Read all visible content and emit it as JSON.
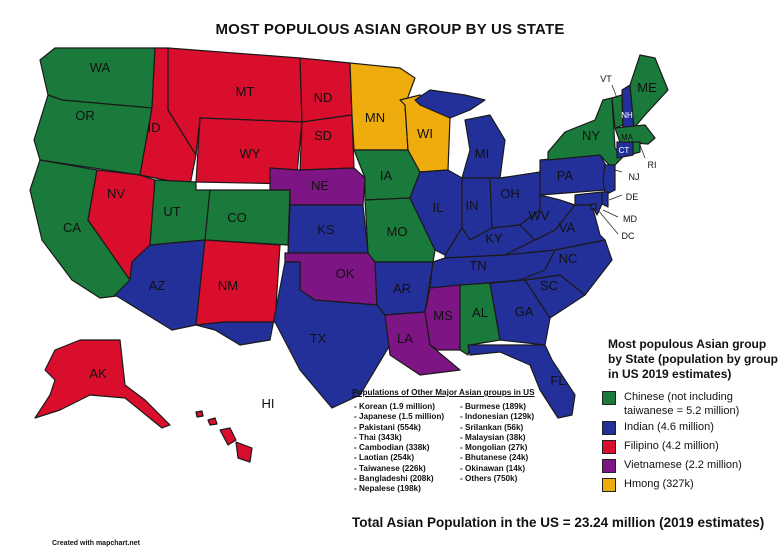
{
  "title": "MOST POPULOUS ASIAN GROUP BY US STATE",
  "colors": {
    "chinese": "#1a7a3c",
    "indian": "#24309a",
    "filipino": "#d90d2c",
    "vietnamese": "#7d1585",
    "hmong": "#efac0d"
  },
  "states": {
    "WA": "WA",
    "OR": "OR",
    "CA": "CA",
    "ID": "ID",
    "NV": "NV",
    "MT": "MT",
    "WY": "WY",
    "UT": "UT",
    "CO": "CO",
    "AZ": "AZ",
    "NM": "NM",
    "ND": "ND",
    "SD": "SD",
    "NE": "NE",
    "KS": "KS",
    "OK": "OK",
    "TX": "TX",
    "MN": "MN",
    "IA": "IA",
    "MO": "MO",
    "AR": "AR",
    "LA": "LA",
    "WI": "WI",
    "IL": "IL",
    "MI": "MI",
    "IN": "IN",
    "OH": "OH",
    "KY": "KY",
    "TN": "TN",
    "MS": "MS",
    "AL": "AL",
    "GA": "GA",
    "FL": "FL",
    "SC": "SC",
    "NC": "NC",
    "VA": "VA",
    "WV": "WV",
    "PA": "PA",
    "NY": "NY",
    "VT": "VT",
    "NH": "NH",
    "ME": "ME",
    "MA": "MA",
    "CT": "CT",
    "RI": "RI",
    "NJ": "NJ",
    "DE": "DE",
    "MD": "MD",
    "DC": "DC",
    "AK": "AK",
    "HI": "HI"
  },
  "legend": {
    "title": "Most populous Asian group by State (population by group in US 2019 estimates)",
    "items": [
      {
        "label": "Chinese (not including taiwanese = 5.2 million)",
        "color": "#1a7a3c"
      },
      {
        "label": "Indian (4.6 million)",
        "color": "#24309a"
      },
      {
        "label": "Filipino (4.2 million)",
        "color": "#d90d2c"
      },
      {
        "label": "Vietnamese (2.2 million)",
        "color": "#7d1585"
      },
      {
        "label": "Hmong (327k)",
        "color": "#efac0d"
      }
    ]
  },
  "others": {
    "title": "Populations of Other Major Asian groups in US",
    "col1": [
      "- Korean (1.9 million)",
      "- Japanese (1.5 million)",
      "- Pakistani (554k)",
      "- Thai (343k)",
      "- Cambodian (338k)",
      "- Laotian (254k)",
      "- Taiwanese (226k)",
      "- Bangladeshi (208k)",
      "- Nepalese (198k)"
    ],
    "col2": [
      "- Burmese (189k)",
      "- Indonesian (129k)",
      "- Srilankan (56k)",
      "- Malaysian (38k)",
      "- Mongolian (27k)",
      "- Bhutanese (24k)",
      "- Okinawan (14k)",
      "- Others (750k)"
    ]
  },
  "total": "Total Asian Population in the US = 23.24 million (2019 estimates)",
  "credit": "Created with mapchart.net"
}
